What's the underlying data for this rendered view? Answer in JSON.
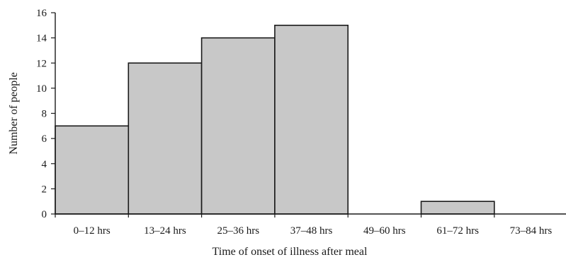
{
  "chart_data": {
    "type": "bar",
    "categories": [
      "0–12 hrs",
      "13–24 hrs",
      "25–36 hrs",
      "37–48 hrs",
      "49–60 hrs",
      "61–72 hrs",
      "73–84 hrs"
    ],
    "values": [
      7,
      12,
      14,
      15,
      0,
      1,
      0
    ],
    "title": "",
    "xlabel": "Time of onset of illness after meal",
    "ylabel": "Number of people",
    "ylim": [
      0,
      16
    ],
    "yticks": [
      0,
      2,
      4,
      6,
      8,
      10,
      12,
      14,
      16
    ],
    "grid": false,
    "legend": "none",
    "colors": {
      "bar_fill": "#c8c8c8",
      "bar_stroke": "#1a1a1a",
      "axis": "#1a1a1a"
    }
  }
}
